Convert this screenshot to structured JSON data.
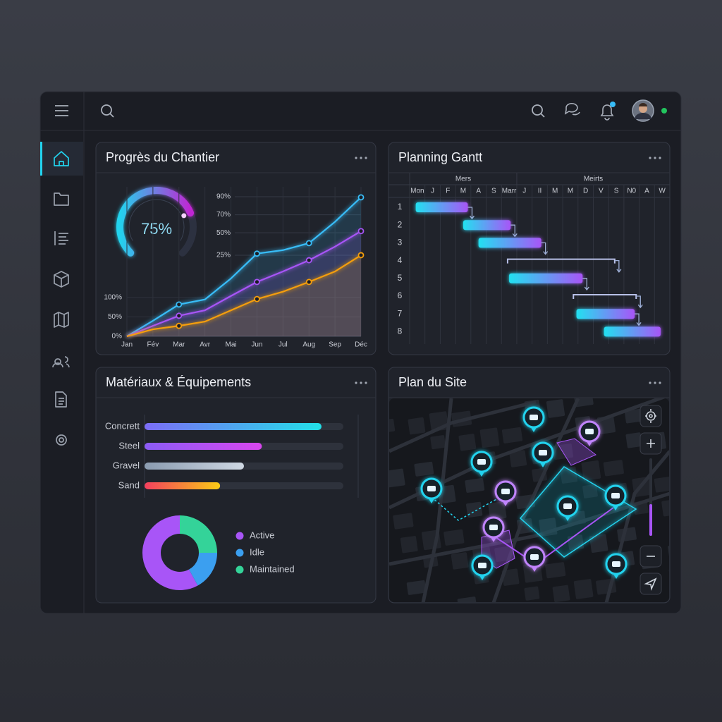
{
  "progress": {
    "title": "Progrès du Chantier",
    "gauge": {
      "value": 75,
      "label": "75%",
      "range": [
        0,
        100
      ]
    },
    "chart_data": {
      "type": "line",
      "categories": [
        "Jan",
        "Fév",
        "Mar",
        "Avr",
        "Mai",
        "Jun",
        "Jul",
        "Aug",
        "Sep",
        "Déc"
      ],
      "ylim": [
        0,
        385
      ],
      "yticks": [
        {
          "value": 0,
          "label": "0%"
        },
        {
          "value": 50,
          "label": "50%"
        },
        {
          "value": 100,
          "label": "100%"
        }
      ],
      "y2lim": [
        -65,
        101
      ],
      "y2ticks": [
        {
          "value": 25,
          "label": "25%"
        },
        {
          "value": 50,
          "label": "50%"
        },
        {
          "value": 70,
          "label": "70%"
        },
        {
          "value": 90,
          "label": "90%"
        }
      ],
      "grid": true,
      "series": [
        {
          "color": "#38bdf8",
          "values": [
            0,
            40,
            82,
            95,
            149,
            213,
            222,
            240,
            295,
            358
          ]
        },
        {
          "color": "#a855f7",
          "values": [
            0,
            27,
            53,
            67,
            104,
            140,
            167,
            196,
            231,
            271
          ]
        },
        {
          "color": "#f59e0b",
          "values": [
            0,
            18,
            27,
            38,
            67,
            96,
            115,
            140,
            167,
            209
          ]
        }
      ]
    }
  },
  "gantt": {
    "title": "Planning Gantt",
    "months": [
      "Mers",
      "Meirts"
    ],
    "days": [
      "Mon",
      "J",
      "F",
      "M",
      "A",
      "S",
      "Marr",
      "J",
      "II",
      "M",
      "M",
      "D",
      "V",
      "S",
      "N0",
      "A",
      "W"
    ],
    "rows": [
      1,
      2,
      3,
      4,
      5,
      6,
      7,
      8
    ],
    "xlim": [
      0,
      17
    ],
    "tasks": [
      {
        "start": 0.4,
        "end": 3.8,
        "style": "bar"
      },
      {
        "start": 3.5,
        "end": 6.6,
        "style": "bar"
      },
      {
        "start": 4.5,
        "end": 8.6,
        "style": "bar"
      },
      {
        "start": 6.4,
        "end": 13.4,
        "style": "bracket"
      },
      {
        "start": 6.5,
        "end": 11.3,
        "style": "bar"
      },
      {
        "start": 10.7,
        "end": 14.8,
        "style": "bracket"
      },
      {
        "start": 10.9,
        "end": 14.7,
        "style": "bar"
      },
      {
        "start": 12.7,
        "end": 16.4,
        "style": "bar"
      }
    ]
  },
  "materials": {
    "title": "Matériaux & Équipements",
    "chart_data": [
      {
        "type": "hbar",
        "categories": [
          "Concrett",
          "Steel",
          "Gravel",
          "Sand"
        ],
        "values": [
          89,
          59,
          50,
          38
        ],
        "xlim": [
          0,
          100
        ],
        "colors": [
          [
            "#7c6cf6",
            "#22e0e8"
          ],
          [
            "#8b5cf6",
            "#d946ef"
          ],
          [
            "#8a9bb0",
            "#cfd8e3"
          ],
          [
            "#f43f5e",
            "#facc15"
          ]
        ]
      },
      {
        "type": "pie",
        "series": [
          {
            "name": "Active",
            "color": "#a855f7",
            "value": 58
          },
          {
            "name": "Idle",
            "color": "#3b9ff0",
            "value": 17
          },
          {
            "name": "Maintained",
            "color": "#34d399",
            "value": 25
          }
        ]
      }
    ]
  },
  "map": {
    "title": "Plan du Site"
  }
}
